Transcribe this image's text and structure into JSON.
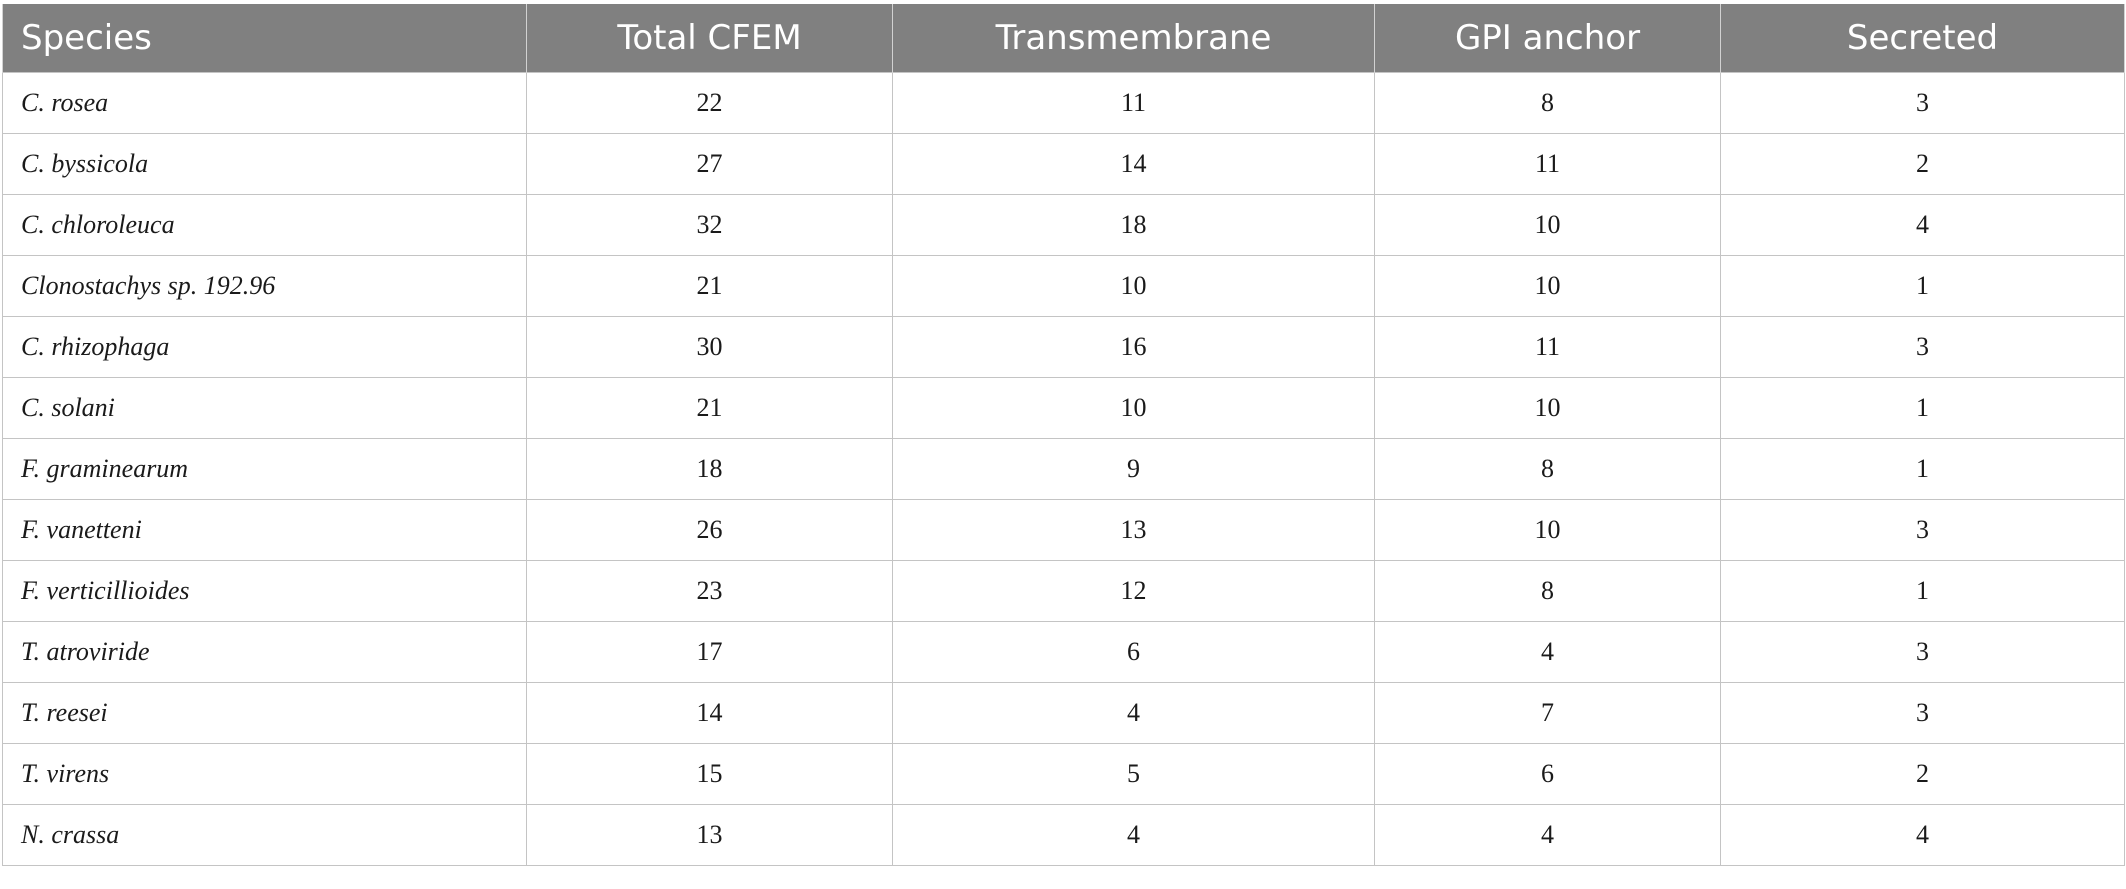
{
  "table": {
    "headers": [
      "Species",
      "Total CFEM",
      "Transmembrane",
      "GPI anchor",
      "Secreted"
    ],
    "rows": [
      [
        "C. rosea",
        "22",
        "11",
        "8",
        "3"
      ],
      [
        "C. byssicola",
        "27",
        "14",
        "11",
        "2"
      ],
      [
        "C. chloroleuca",
        "32",
        "18",
        "10",
        "4"
      ],
      [
        "Clonostachys sp. 192.96",
        "21",
        "10",
        "10",
        "1"
      ],
      [
        "C. rhizophaga",
        "30",
        "16",
        "11",
        "3"
      ],
      [
        "C. solani",
        "21",
        "10",
        "10",
        "1"
      ],
      [
        "F. graminearum",
        "18",
        "9",
        "8",
        "1"
      ],
      [
        "F. vanetteni",
        "26",
        "13",
        "10",
        "3"
      ],
      [
        "F. verticillioides",
        "23",
        "12",
        "8",
        "1"
      ],
      [
        "T. atroviride",
        "17",
        "6",
        "4",
        "3"
      ],
      [
        "T. reesei",
        "14",
        "4",
        "7",
        "3"
      ],
      [
        "T. virens",
        "15",
        "5",
        "6",
        "2"
      ],
      [
        "N. crassa",
        "13",
        "4",
        "4",
        "4"
      ]
    ],
    "header_background": "#808080",
    "header_text_color": "#ffffff"
  }
}
